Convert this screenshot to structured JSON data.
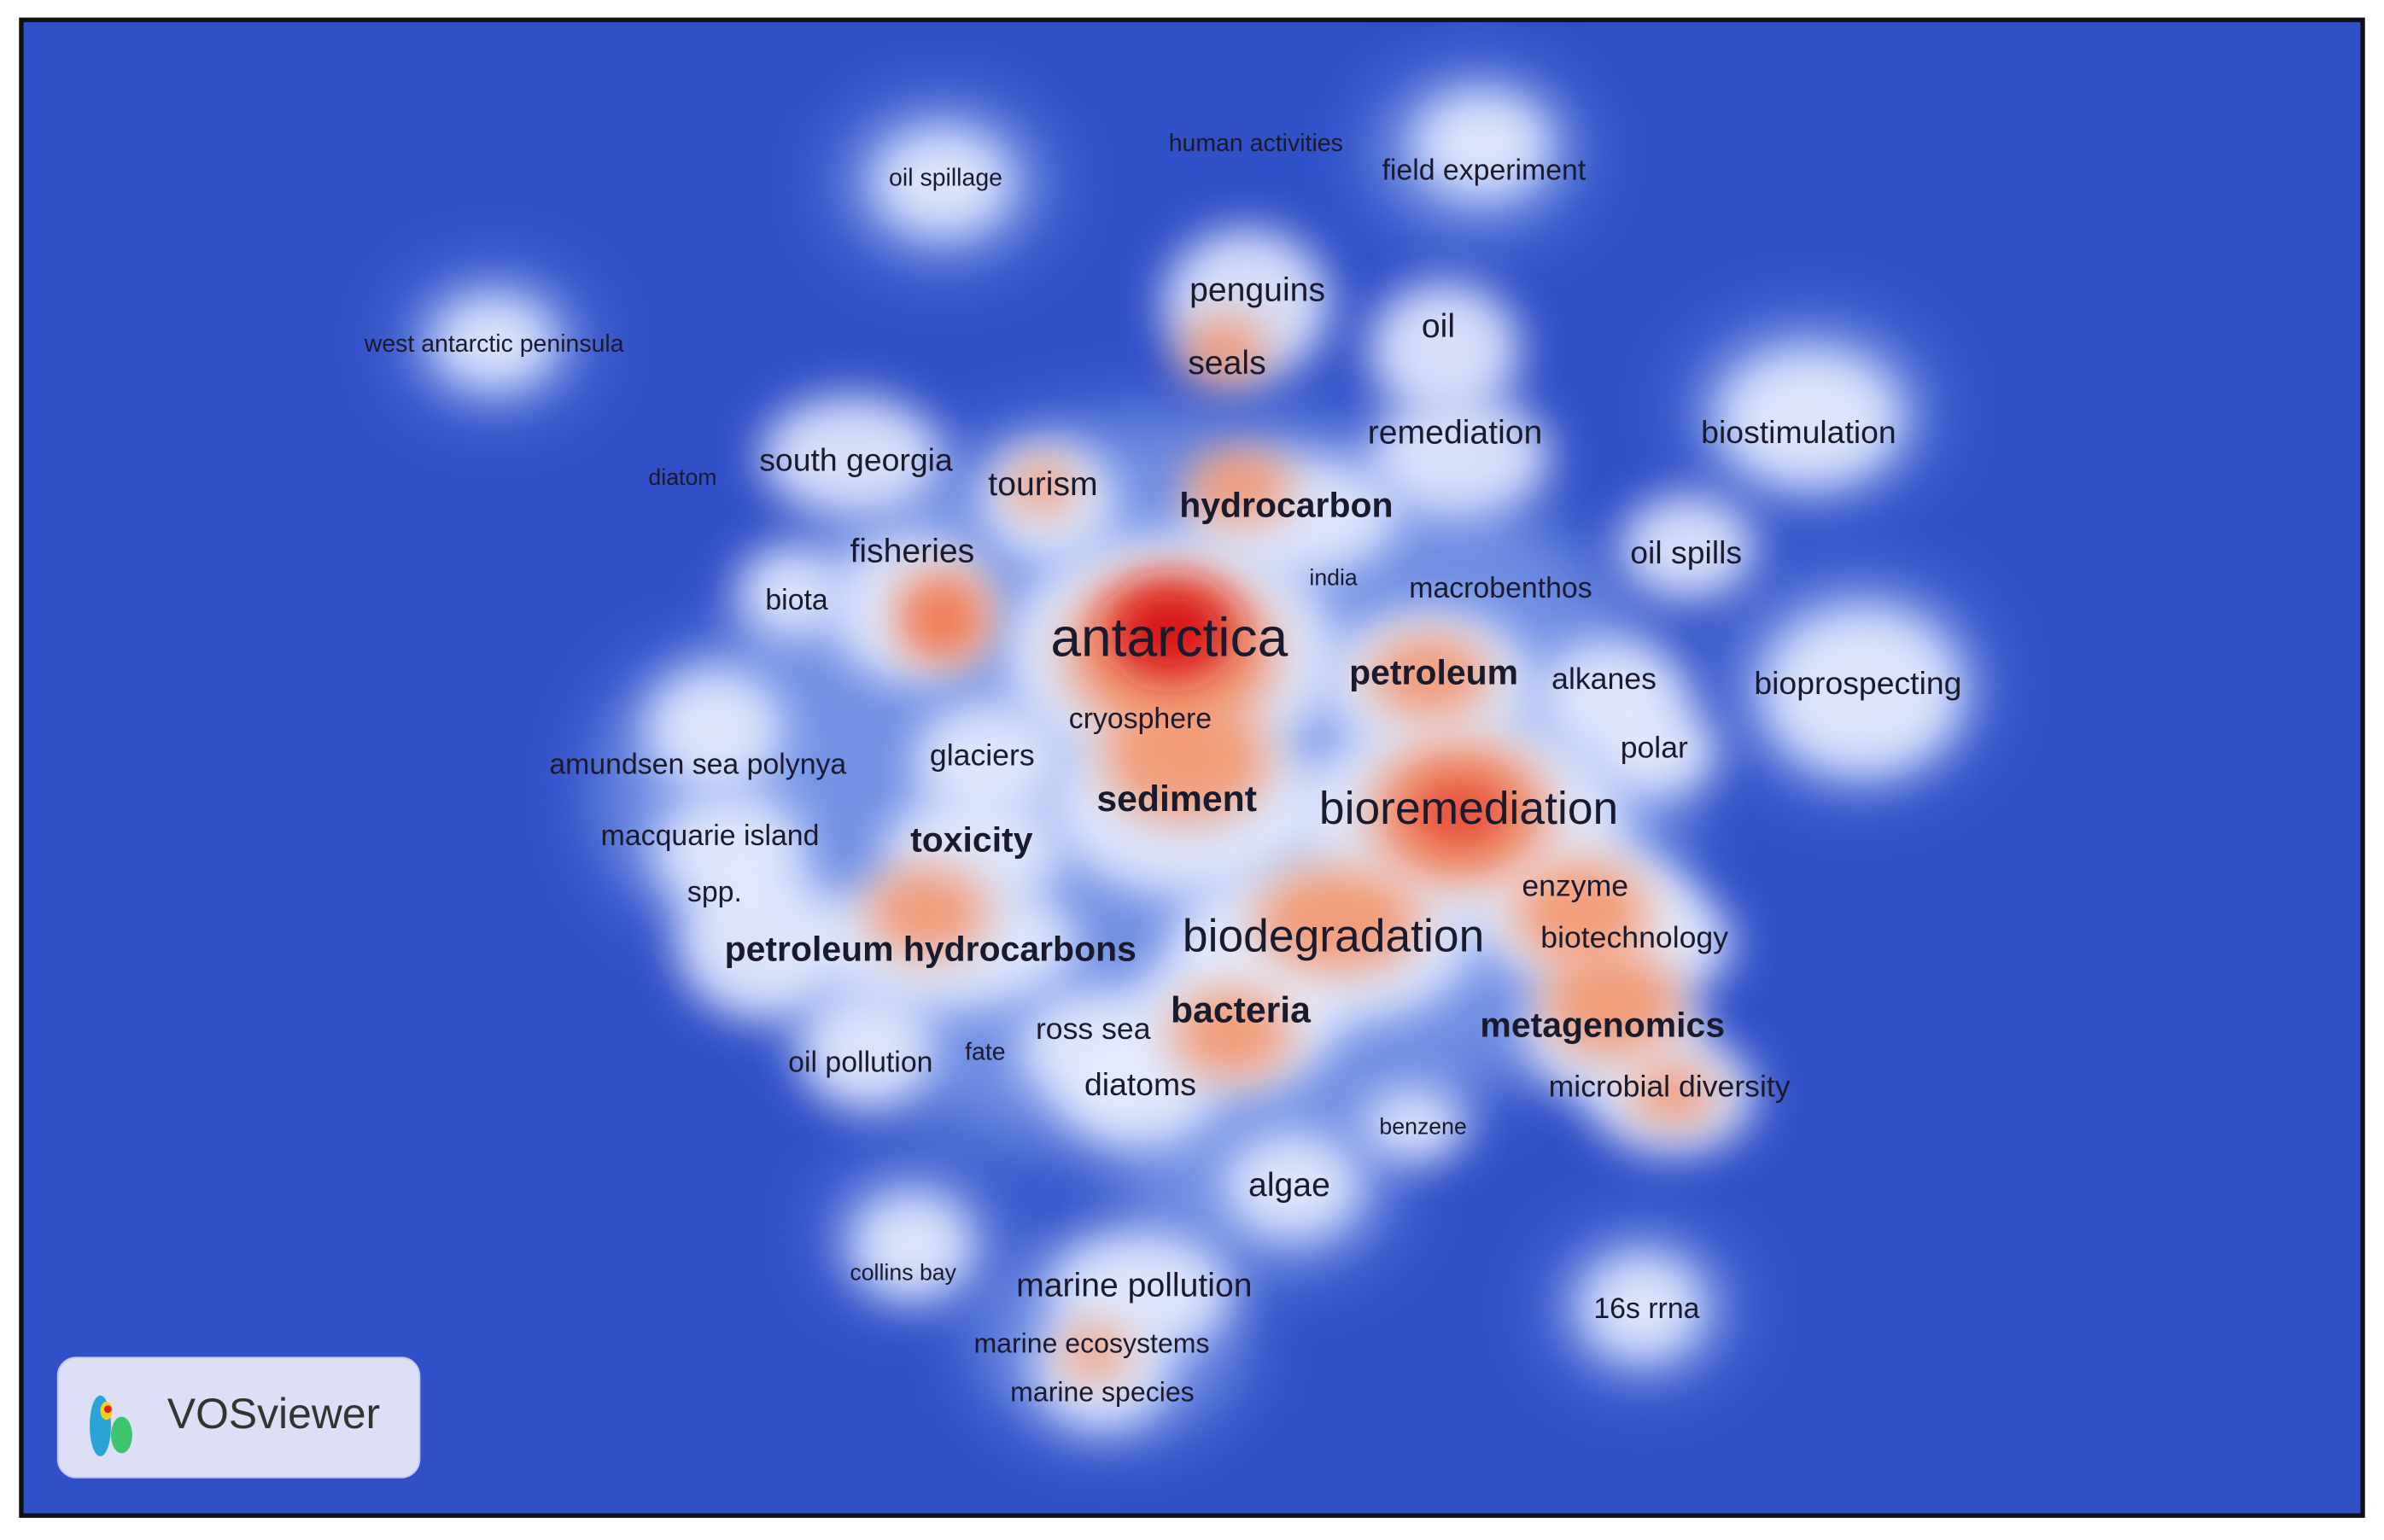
{
  "keywords": [
    "human activities",
    "oil spillage",
    "field experiment",
    "west antarctic peninsula",
    "penguins",
    "oil",
    "seals",
    "remediation",
    "biostimulation",
    "diatom",
    "south georgia",
    "tourism",
    "hydrocarbon",
    "fisheries",
    "india",
    "macrobenthos",
    "oil spills",
    "biota",
    "antarctica",
    "petroleum",
    "alkanes",
    "bioprospecting",
    "cryosphere",
    "polar",
    "amundsen sea polynya",
    "glaciers",
    "sediment",
    "bioremediation",
    "macquarie island",
    "toxicity",
    "enzyme",
    "spp.",
    "petroleum hydrocarbons",
    "biodegradation",
    "biotechnology",
    "bacteria",
    "ross sea",
    "metagenomics",
    "oil pollution",
    "fate",
    "diatoms",
    "microbial diversity",
    "benzene",
    "algae",
    "collins bay",
    "marine pollution",
    "16s rrna",
    "marine ecosystems",
    "marine species"
  ],
  "logo": "VOSviewer"
}
